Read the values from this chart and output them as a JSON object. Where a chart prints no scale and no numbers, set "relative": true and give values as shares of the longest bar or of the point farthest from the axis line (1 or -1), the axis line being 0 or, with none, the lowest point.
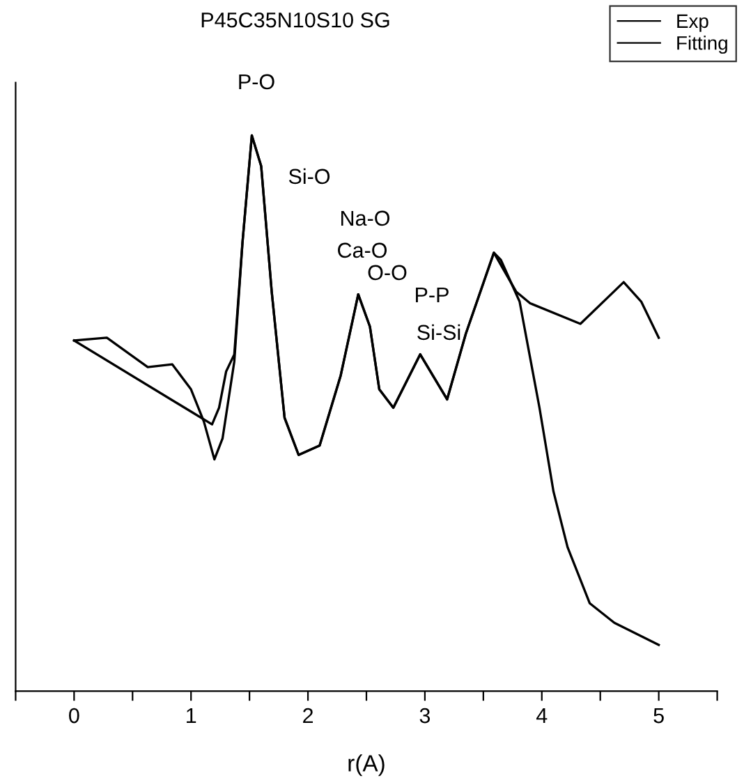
{
  "chart_data": {
    "type": "line",
    "title": "P45C35N10S10 SG",
    "xlabel": "r(A)",
    "relative": true,
    "tick_labels": "x",
    "legend": "top right",
    "grid": false,
    "xlim": [
      -0.5,
      5.5
    ],
    "xticks": [
      {
        "value": -0.5,
        "label": null
      },
      0,
      {
        "value": 0.5,
        "label": null
      },
      1,
      {
        "value": 1.5,
        "label": null
      },
      2,
      {
        "value": 2.5,
        "label": null
      },
      3,
      {
        "value": 3.5,
        "label": null
      },
      4,
      {
        "value": 4.5,
        "label": null
      },
      5,
      {
        "value": 5.5,
        "label": null
      }
    ],
    "series": [
      {
        "name": "Exp",
        "color": "#000000",
        "x": [
          0,
          0.28,
          0.63,
          0.84,
          1.0,
          1.11,
          1.2,
          1.27,
          1.37,
          1.44,
          1.52,
          1.6,
          1.69,
          1.8,
          1.92,
          2.1,
          2.28,
          2.43,
          2.53,
          2.61,
          2.73,
          2.96,
          3.19,
          3.35,
          3.59,
          3.78,
          3.9,
          4.33,
          4.7,
          4.85,
          5.0
        ],
        "values": [
          0.631,
          0.636,
          0.583,
          0.588,
          0.543,
          0.485,
          0.417,
          0.455,
          0.593,
          0.807,
          1.0,
          0.945,
          0.719,
          0.492,
          0.425,
          0.442,
          0.568,
          0.714,
          0.656,
          0.543,
          0.51,
          0.606,
          0.525,
          0.643,
          0.789,
          0.719,
          0.698,
          0.661,
          0.736,
          0.701,
          0.636
        ]
      },
      {
        "name": "Fitting",
        "color": "#000000",
        "x": [
          0,
          1.0,
          1.18,
          1.24,
          1.3,
          1.37,
          1.44,
          1.52,
          1.6,
          1.69,
          1.8,
          1.92,
          2.1,
          2.28,
          2.43,
          2.53,
          2.61,
          2.73,
          2.96,
          3.19,
          3.35,
          3.59,
          3.65,
          3.81,
          3.98,
          4.1,
          4.22,
          4.41,
          4.62,
          5.0
        ],
        "values": [
          0.631,
          0.503,
          0.48,
          0.51,
          0.575,
          0.606,
          0.807,
          1.0,
          0.945,
          0.719,
          0.492,
          0.425,
          0.442,
          0.568,
          0.714,
          0.656,
          0.543,
          0.51,
          0.606,
          0.525,
          0.643,
          0.789,
          0.776,
          0.701,
          0.51,
          0.359,
          0.259,
          0.158,
          0.123,
          0.083
        ]
      }
    ],
    "annotations": [
      "P-O",
      "Si-O",
      "Na-O",
      "Ca-O",
      "O-O",
      "P-P",
      "Si-Si"
    ]
  }
}
